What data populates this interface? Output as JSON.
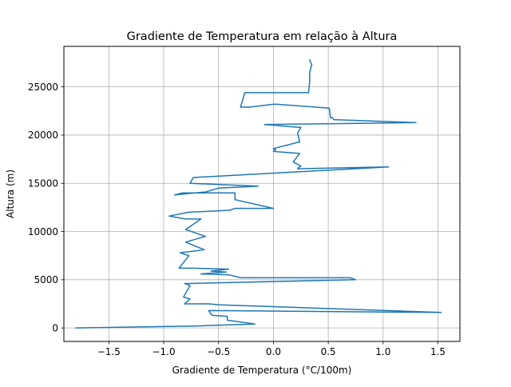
{
  "chart_data": {
    "type": "line",
    "title": "Gradiente de Temperatura em relação à Altura",
    "xlabel": "Gradiente de Temperatura (°C/100m)",
    "ylabel": "Altura (m)",
    "xlim": [
      -1.91,
      1.7
    ],
    "ylim": [
      -1400,
      29200
    ],
    "xticks": [
      -1.5,
      -1.0,
      -0.5,
      0.0,
      0.5,
      1.0,
      1.5
    ],
    "xtick_labels": [
      "−1.5",
      "−1.0",
      "−0.5",
      "0.0",
      "0.5",
      "1.0",
      "1.5"
    ],
    "yticks": [
      0,
      5000,
      10000,
      15000,
      20000,
      25000
    ],
    "ytick_labels": [
      "0",
      "5000",
      "10000",
      "15000",
      "20000",
      "25000"
    ],
    "grid": true,
    "legend": "none",
    "colors": {
      "line": "#1f77b4",
      "grid": "#b0b0b0",
      "axes": "#000000"
    },
    "series": [
      {
        "x": [
          -1.8,
          -0.72,
          -0.17,
          -0.35,
          -0.42,
          -0.42,
          -0.56,
          -0.59,
          1.53,
          -0.49,
          -0.59,
          -0.81,
          -0.76,
          -0.82,
          -0.76,
          -0.81,
          0.75,
          0.7,
          -0.3,
          -0.4,
          -0.66,
          -0.43,
          -0.57,
          -0.41,
          -0.73,
          -0.86,
          -0.77,
          -0.85,
          -0.63,
          -0.8,
          -0.62,
          -0.8,
          -0.66,
          -0.8,
          -0.95,
          -0.77,
          -0.4,
          -0.35,
          0.0,
          -0.35,
          -0.35,
          -0.83,
          -0.9,
          -0.62,
          -0.5,
          -0.14,
          -0.76,
          -0.73,
          1.05,
          0.22,
          0.25,
          0.18,
          0.24,
          0.0,
          0.02,
          0.0,
          0.24,
          0.22,
          0.25,
          0.23,
          -0.08,
          1.3,
          0.55,
          0.54,
          0.52,
          0.51,
          0.03,
          0.0,
          -0.22,
          -0.3,
          -0.26,
          0.32,
          0.33,
          0.33,
          0.35,
          0.33
        ],
        "y": [
          0,
          200,
          400,
          700,
          800,
          1200,
          1300,
          1800,
          1600,
          2400,
          2500,
          2500,
          3000,
          3200,
          4400,
          4600,
          5000,
          5200,
          5200,
          5500,
          5600,
          5800,
          5900,
          6100,
          6200,
          6200,
          7500,
          7800,
          8100,
          8900,
          9500,
          10200,
          11300,
          11300,
          11600,
          12000,
          12200,
          12400,
          12400,
          13300,
          14000,
          14000,
          13800,
          14100,
          14500,
          14700,
          15000,
          15600,
          16700,
          16500,
          16800,
          17200,
          18100,
          18300,
          18500,
          18600,
          19300,
          20200,
          20800,
          20800,
          21100,
          21300,
          21600,
          21800,
          21800,
          22800,
          23200,
          23200,
          22900,
          22900,
          24400,
          24400,
          25500,
          26500,
          27300,
          27800
        ]
      }
    ]
  }
}
